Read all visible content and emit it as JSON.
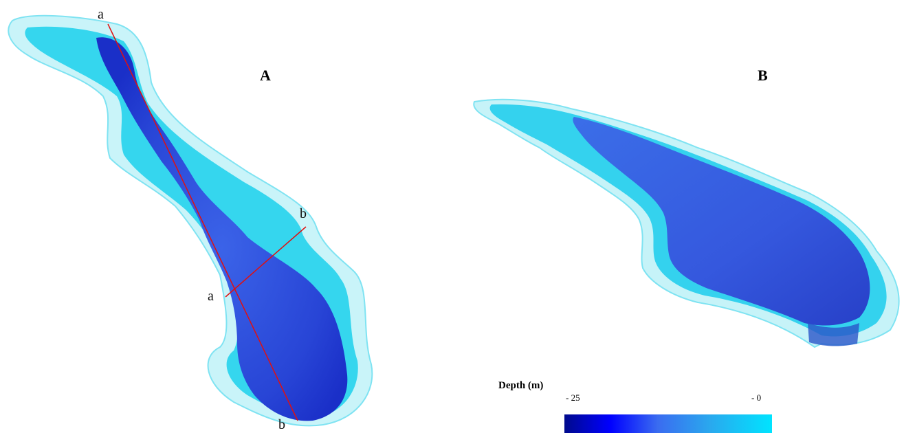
{
  "panels": {
    "a": {
      "label": "A"
    },
    "b": {
      "label": "B"
    }
  },
  "transect_labels": {
    "a_top": "a",
    "b_right": "b",
    "a_left": "a",
    "b_bottom": "b"
  },
  "legend": {
    "title": "Depth (m)",
    "min_label": "- 25",
    "max_label": "- 0"
  },
  "colors": {
    "deep": "#1a2fc8",
    "mid": "#3a6cf0",
    "shallow": "#2fd0f0",
    "rim": "#b8f2f8",
    "transect": "#e01010"
  }
}
